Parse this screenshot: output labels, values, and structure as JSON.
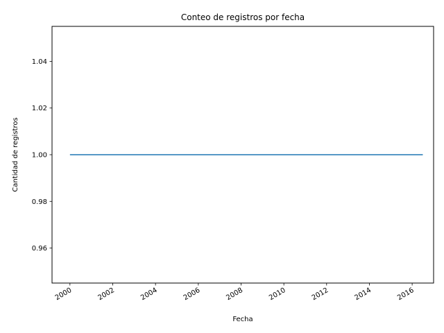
{
  "chart_data": {
    "type": "line",
    "title": "Conteo de registros por fecha",
    "xlabel": "Fecha",
    "ylabel": "Cantidad de registros",
    "x_range": [
      "1999-03-01",
      "2017-01-01"
    ],
    "ylim": [
      0.945,
      1.055
    ],
    "x_ticks": [
      "2000",
      "2002",
      "2004",
      "2006",
      "2008",
      "2010",
      "2012",
      "2014",
      "2016"
    ],
    "y_ticks": [
      "0.96",
      "0.98",
      "1.00",
      "1.02",
      "1.04"
    ],
    "grid": false,
    "series": [
      {
        "color": "#1f77b4",
        "points": [
          {
            "x": "2000-01-01",
            "y": 1.0
          },
          {
            "x": "2016-07-01",
            "y": 1.0
          }
        ]
      }
    ]
  }
}
